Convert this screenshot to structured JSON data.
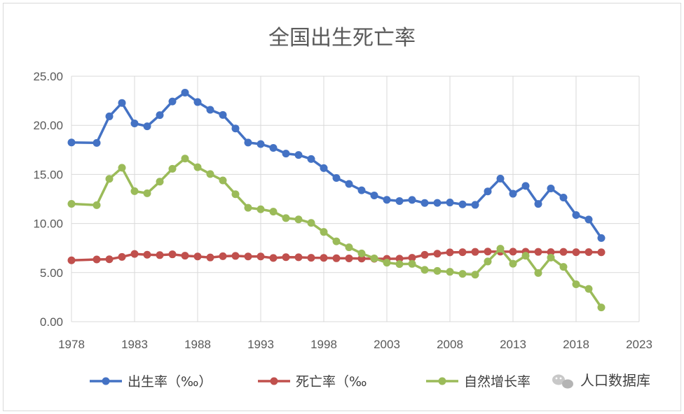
{
  "chart_data": {
    "type": "line",
    "title": "全国出生死亡率",
    "xlabel": "",
    "ylabel": "",
    "xlim": [
      1978,
      2023
    ],
    "ylim": [
      0,
      25
    ],
    "x_ticks": [
      "1978",
      "1983",
      "1988",
      "1993",
      "1998",
      "2003",
      "2008",
      "2013",
      "2018",
      "2023"
    ],
    "y_ticks": [
      "0.00",
      "5.00",
      "10.00",
      "15.00",
      "20.00",
      "25.00"
    ],
    "grid": true,
    "legend_position": "bottom",
    "series": [
      {
        "name": "出生率（‰）",
        "color": "#4472c4",
        "points": [
          [
            1978,
            18.25
          ],
          [
            1980,
            18.21
          ],
          [
            1981,
            20.91
          ],
          [
            1982,
            22.28
          ],
          [
            1983,
            20.19
          ],
          [
            1984,
            19.9
          ],
          [
            1985,
            21.04
          ],
          [
            1986,
            22.43
          ],
          [
            1987,
            23.33
          ],
          [
            1988,
            22.37
          ],
          [
            1989,
            21.58
          ],
          [
            1990,
            21.06
          ],
          [
            1991,
            19.68
          ],
          [
            1992,
            18.24
          ],
          [
            1993,
            18.09
          ],
          [
            1994,
            17.7
          ],
          [
            1995,
            17.12
          ],
          [
            1996,
            16.98
          ],
          [
            1997,
            16.57
          ],
          [
            1998,
            15.64
          ],
          [
            1999,
            14.64
          ],
          [
            2000,
            14.03
          ],
          [
            2001,
            13.38
          ],
          [
            2002,
            12.86
          ],
          [
            2003,
            12.41
          ],
          [
            2004,
            12.29
          ],
          [
            2005,
            12.4
          ],
          [
            2006,
            12.09
          ],
          [
            2007,
            12.1
          ],
          [
            2008,
            12.14
          ],
          [
            2009,
            11.95
          ],
          [
            2010,
            11.9
          ],
          [
            2011,
            13.27
          ],
          [
            2012,
            14.57
          ],
          [
            2013,
            13.03
          ],
          [
            2014,
            13.83
          ],
          [
            2015,
            11.99
          ],
          [
            2016,
            13.57
          ],
          [
            2017,
            12.64
          ],
          [
            2018,
            10.86
          ],
          [
            2019,
            10.41
          ],
          [
            2020,
            8.52
          ]
        ]
      },
      {
        "name": "死亡率（‰",
        "color": "#c0504d",
        "points": [
          [
            1978,
            6.25
          ],
          [
            1980,
            6.34
          ],
          [
            1981,
            6.36
          ],
          [
            1982,
            6.6
          ],
          [
            1983,
            6.9
          ],
          [
            1984,
            6.82
          ],
          [
            1985,
            6.78
          ],
          [
            1986,
            6.86
          ],
          [
            1987,
            6.72
          ],
          [
            1988,
            6.64
          ],
          [
            1989,
            6.54
          ],
          [
            1990,
            6.67
          ],
          [
            1991,
            6.7
          ],
          [
            1992,
            6.64
          ],
          [
            1993,
            6.64
          ],
          [
            1994,
            6.49
          ],
          [
            1995,
            6.57
          ],
          [
            1996,
            6.56
          ],
          [
            1997,
            6.51
          ],
          [
            1998,
            6.5
          ],
          [
            1999,
            6.46
          ],
          [
            2000,
            6.45
          ],
          [
            2001,
            6.43
          ],
          [
            2002,
            6.41
          ],
          [
            2003,
            6.4
          ],
          [
            2004,
            6.42
          ],
          [
            2005,
            6.51
          ],
          [
            2006,
            6.81
          ],
          [
            2007,
            6.93
          ],
          [
            2008,
            7.06
          ],
          [
            2009,
            7.08
          ],
          [
            2010,
            7.11
          ],
          [
            2011,
            7.14
          ],
          [
            2012,
            7.13
          ],
          [
            2013,
            7.13
          ],
          [
            2014,
            7.12
          ],
          [
            2015,
            7.11
          ],
          [
            2016,
            7.09
          ],
          [
            2017,
            7.11
          ],
          [
            2018,
            7.08
          ],
          [
            2019,
            7.09
          ],
          [
            2020,
            7.07
          ]
        ]
      },
      {
        "name": "自然增长率",
        "color": "#9bbb59",
        "points": [
          [
            1978,
            12.0
          ],
          [
            1980,
            11.87
          ],
          [
            1981,
            14.55
          ],
          [
            1982,
            15.68
          ],
          [
            1983,
            13.29
          ],
          [
            1984,
            13.08
          ],
          [
            1985,
            14.26
          ],
          [
            1986,
            15.57
          ],
          [
            1987,
            16.61
          ],
          [
            1988,
            15.73
          ],
          [
            1989,
            15.04
          ],
          [
            1990,
            14.39
          ],
          [
            1991,
            12.98
          ],
          [
            1992,
            11.6
          ],
          [
            1993,
            11.45
          ],
          [
            1994,
            11.21
          ],
          [
            1995,
            10.55
          ],
          [
            1996,
            10.42
          ],
          [
            1997,
            10.06
          ],
          [
            1998,
            9.14
          ],
          [
            1999,
            8.18
          ],
          [
            2000,
            7.58
          ],
          [
            2001,
            6.95
          ],
          [
            2002,
            6.45
          ],
          [
            2003,
            6.01
          ],
          [
            2004,
            5.87
          ],
          [
            2005,
            5.89
          ],
          [
            2006,
            5.28
          ],
          [
            2007,
            5.17
          ],
          [
            2008,
            5.08
          ],
          [
            2009,
            4.87
          ],
          [
            2010,
            4.79
          ],
          [
            2011,
            6.13
          ],
          [
            2012,
            7.43
          ],
          [
            2013,
            5.9
          ],
          [
            2014,
            6.71
          ],
          [
            2015,
            4.96
          ],
          [
            2016,
            6.53
          ],
          [
            2017,
            5.58
          ],
          [
            2018,
            3.81
          ],
          [
            2019,
            3.34
          ],
          [
            2020,
            1.45
          ]
        ]
      }
    ]
  },
  "watermark": {
    "text": "人口数据库",
    "icon": "wechat-icon"
  }
}
